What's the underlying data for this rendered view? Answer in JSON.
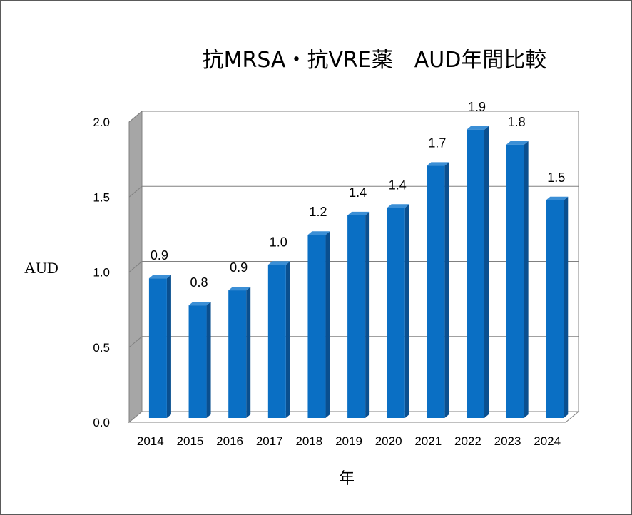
{
  "chart_data": {
    "type": "bar",
    "title": "抗MRSA・抗VRE薬　AUD年間比較",
    "xlabel": "年",
    "ylabel": "AUD",
    "categories": [
      "2014",
      "2015",
      "2016",
      "2017",
      "2018",
      "2019",
      "2020",
      "2021",
      "2022",
      "2023",
      "2024"
    ],
    "values": [
      0.93,
      0.75,
      0.85,
      1.02,
      1.22,
      1.35,
      1.4,
      1.68,
      1.92,
      1.82,
      1.45
    ],
    "data_labels": [
      "0.9",
      "0.8",
      "0.9",
      "1.0",
      "1.2",
      "1.4",
      "1.4",
      "1.7",
      "1.9",
      "1.8",
      "1.5"
    ],
    "ylim": [
      0,
      2.0
    ],
    "yticks": [
      "0.0",
      "0.5",
      "1.0",
      "1.5",
      "2.0"
    ],
    "grid": true,
    "legend": "none",
    "style": "3d-column",
    "colors": {
      "bar_front": "#0a6fc4",
      "bar_side": "#0a4f8f",
      "bar_top": "#3b8fd6",
      "wall_side": "#a6a6a6",
      "gridline": "#808080"
    }
  }
}
